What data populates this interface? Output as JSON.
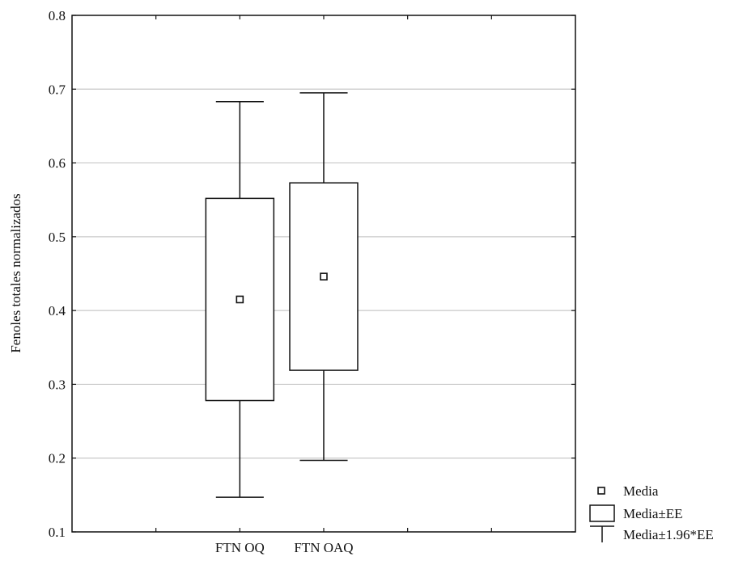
{
  "chart_data": {
    "type": "boxplot",
    "ylabel": "Fenoles totales normalizados",
    "xlabel": "",
    "ylim": [
      0.1,
      0.8
    ],
    "yticks": [
      "0.1",
      "0.2",
      "0.3",
      "0.4",
      "0.5",
      "0.6",
      "0.7",
      "0.8"
    ],
    "grid": "horizontal",
    "categories": [
      "FTN OQ",
      "FTN OAQ"
    ],
    "groups": [
      {
        "name": "FTN OQ",
        "mean": 0.415,
        "se_low": 0.278,
        "se_high": 0.552,
        "ci_low": 0.147,
        "ci_high": 0.683
      },
      {
        "name": "FTN OAQ",
        "mean": 0.446,
        "se_low": 0.319,
        "se_high": 0.573,
        "ci_low": 0.197,
        "ci_high": 0.695
      }
    ],
    "legend": {
      "position": "bottom-right",
      "entries": [
        "Media",
        "Media±EE",
        "Media±1.96*EE"
      ]
    }
  }
}
